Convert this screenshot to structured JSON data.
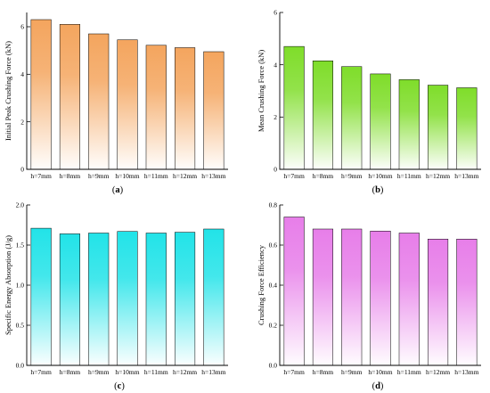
{
  "chart_data": [
    {
      "type": "bar",
      "panel": "a",
      "categories": [
        "h=7mm",
        "h=8mm",
        "h=9mm",
        "h=10mm",
        "h=11mm",
        "h=12mm",
        "h=13mm"
      ],
      "values": [
        6.3,
        6.1,
        5.7,
        5.45,
        5.22,
        5.12,
        4.95
      ],
      "ylabel": "Initial Peak Crushing Force (kN)",
      "ylim": [
        0,
        6.6
      ],
      "yticks": [
        0,
        2,
        4,
        6
      ],
      "color": "#f4a55e",
      "grid": false
    },
    {
      "type": "bar",
      "panel": "b",
      "categories": [
        "h=7mm",
        "h=8mm",
        "h=9mm",
        "h=10mm",
        "h=11mm",
        "h=12mm",
        "h=13mm"
      ],
      "values": [
        4.7,
        4.15,
        3.93,
        3.65,
        3.43,
        3.22,
        3.12
      ],
      "ylabel": "Mean Crushing Force (kN)",
      "ylim": [
        0,
        6
      ],
      "yticks": [
        0,
        2,
        4,
        6
      ],
      "color": "#7fdd2a",
      "grid": false
    },
    {
      "type": "bar",
      "panel": "c",
      "categories": [
        "h=7mm",
        "h=8mm",
        "h=9mm",
        "h=10mm",
        "h=11mm",
        "h=12mm",
        "h=13mm"
      ],
      "values": [
        1.71,
        1.64,
        1.65,
        1.67,
        1.65,
        1.66,
        1.7
      ],
      "ylabel": "Specific Energy Absorption (J/g)",
      "ylim": [
        0,
        2.0
      ],
      "yticks": [
        "0.0",
        "0.5",
        "1.0",
        "1.5",
        "2.0"
      ],
      "color": "#22e3e8",
      "grid": false
    },
    {
      "type": "bar",
      "panel": "d",
      "categories": [
        "h=7mm",
        "h=8mm",
        "h=9mm",
        "h=10mm",
        "h=11mm",
        "h=12mm",
        "h=13mm"
      ],
      "values": [
        0.74,
        0.68,
        0.68,
        0.67,
        0.66,
        0.63,
        0.63
      ],
      "ylabel": "Crushing Force Efficiency",
      "ylim": [
        0,
        0.8
      ],
      "yticks": [
        "0.0",
        "0.2",
        "0.4",
        "0.6",
        "0.8"
      ],
      "color": "#e77ee9",
      "grid": false
    }
  ],
  "panel_labels": [
    {
      "open": "(",
      "letter": "a",
      "close": ")"
    },
    {
      "open": "(",
      "letter": "b",
      "close": ")"
    },
    {
      "open": "(",
      "letter": "c",
      "close": ")"
    },
    {
      "open": "(",
      "letter": "d",
      "close": ")"
    }
  ]
}
